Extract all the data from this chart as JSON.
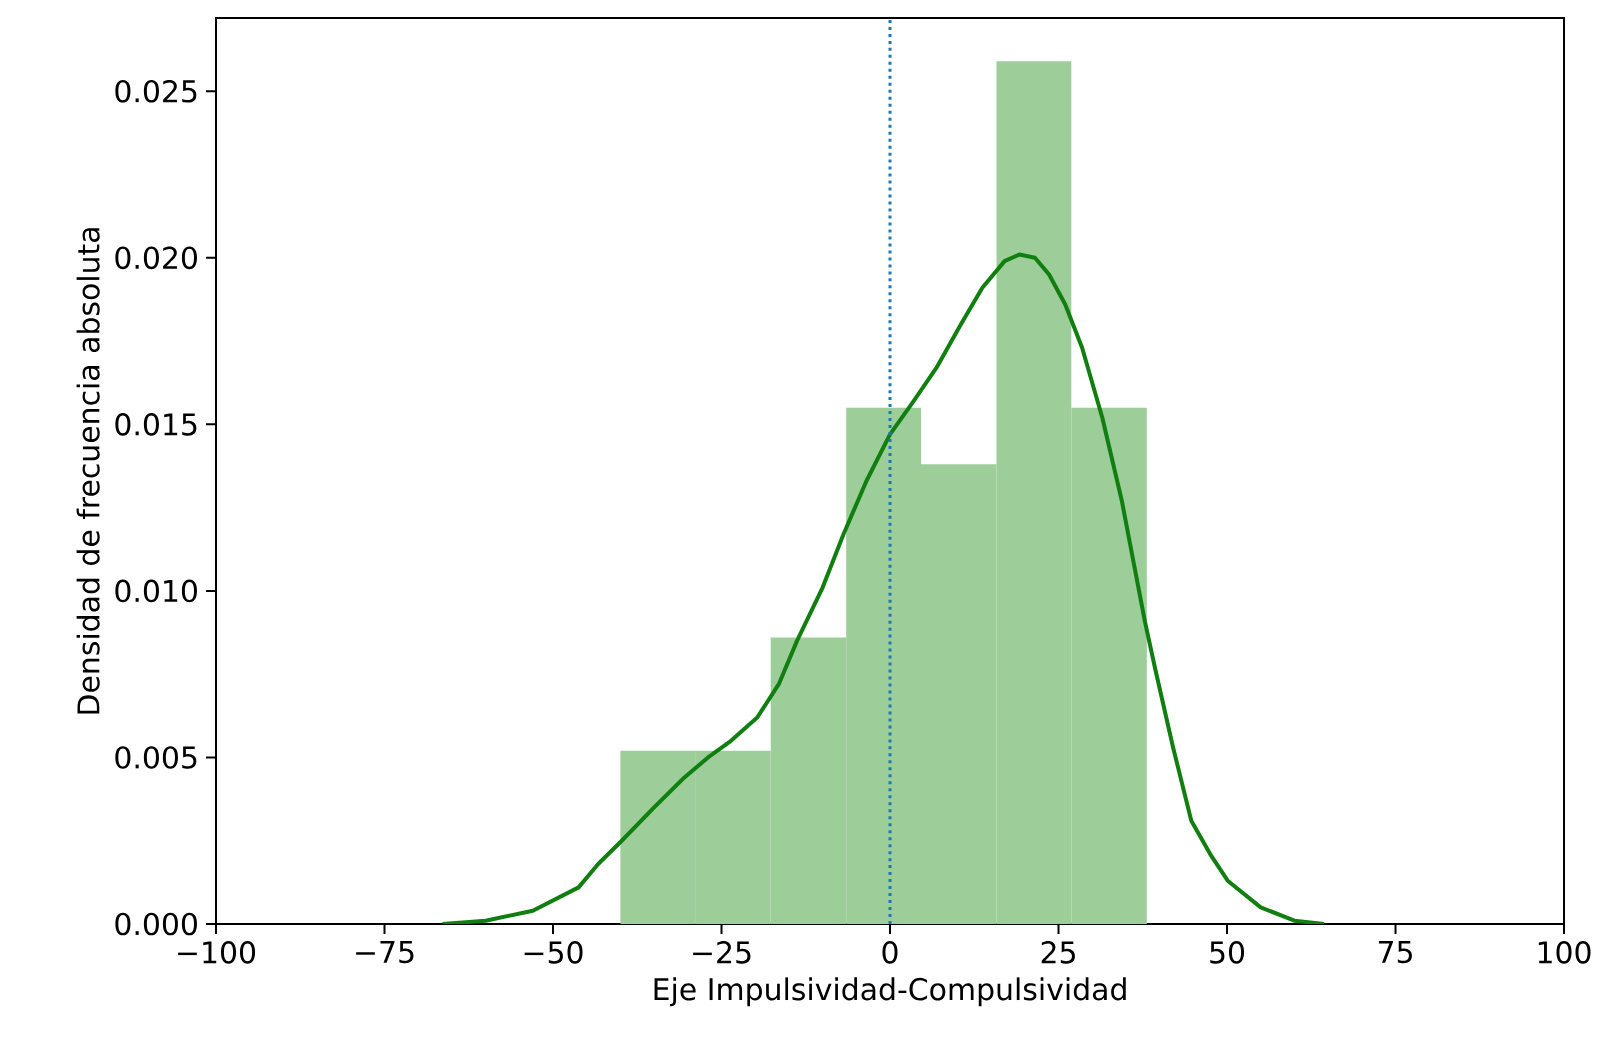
{
  "chart_data": {
    "type": "histogram",
    "xlabel": "Eje Impulsividad-Compulsividad",
    "ylabel": "Densidad de frecuencia absoluta",
    "series": [
      {
        "color": "#9dcd99",
        "bins": [
          -40,
          -28.8,
          -17.7,
          -6.5,
          4.6,
          15.8,
          26.9,
          38.1
        ],
        "values": [
          0.0052,
          0.0052,
          0.0086,
          0.0155,
          0.0138,
          0.0259,
          0.0155
        ]
      },
      {
        "type": "line",
        "color": "#107f10",
        "x": [
          -66.4,
          -60,
          -53,
          -46.2,
          -43.3,
          -39.8,
          -35,
          -30.5,
          -27,
          -23.6,
          -19.7,
          -16.5,
          -13.8,
          -10,
          -6.9,
          -3.5,
          0,
          3.5,
          6.9,
          10.5,
          13.7,
          17,
          19.2,
          21.5,
          23.6,
          26,
          28.5,
          31.5,
          34.4,
          37.8,
          39.3,
          42,
          44.7,
          47.5,
          50.1,
          55,
          60,
          64.4
        ],
        "values": [
          0,
          0.0001,
          0.0004,
          0.0011,
          0.0018,
          0.0025,
          0.0035,
          0.0044,
          0.005,
          0.0055,
          0.0062,
          0.0072,
          0.0085,
          0.0101,
          0.0117,
          0.0133,
          0.0147,
          0.0157,
          0.0167,
          0.018,
          0.0191,
          0.0199,
          0.0201,
          0.02,
          0.0195,
          0.0186,
          0.0173,
          0.0152,
          0.0127,
          0.0091,
          0.0077,
          0.0053,
          0.0031,
          0.0021,
          0.0013,
          0.0005,
          0.0001,
          0
        ]
      }
    ],
    "ref_lines": [
      {
        "axis": "x",
        "value": 0,
        "color": "#1f77b4",
        "line_style": "dotted"
      }
    ],
    "xlim": [
      -100,
      100
    ],
    "ylim": [
      0,
      0.0272
    ],
    "xticks": [
      {
        "value": -100,
        "label": "−100"
      },
      {
        "value": -75,
        "label": "−75"
      },
      {
        "value": -50,
        "label": "−50"
      },
      {
        "value": -25,
        "label": "−25"
      },
      {
        "value": 0,
        "label": "0"
      },
      {
        "value": 25,
        "label": "25"
      },
      {
        "value": 50,
        "label": "50"
      },
      {
        "value": 75,
        "label": "75"
      },
      {
        "value": 100,
        "label": "100"
      }
    ],
    "yticks": [
      {
        "value": 0,
        "label": "0.000"
      },
      {
        "value": 0.005,
        "label": "0.005"
      },
      {
        "value": 0.01,
        "label": "0.010"
      },
      {
        "value": 0.015,
        "label": "0.015"
      },
      {
        "value": 0.02,
        "label": "0.020"
      },
      {
        "value": 0.025,
        "label": "0.025"
      }
    ],
    "grid": false
  }
}
